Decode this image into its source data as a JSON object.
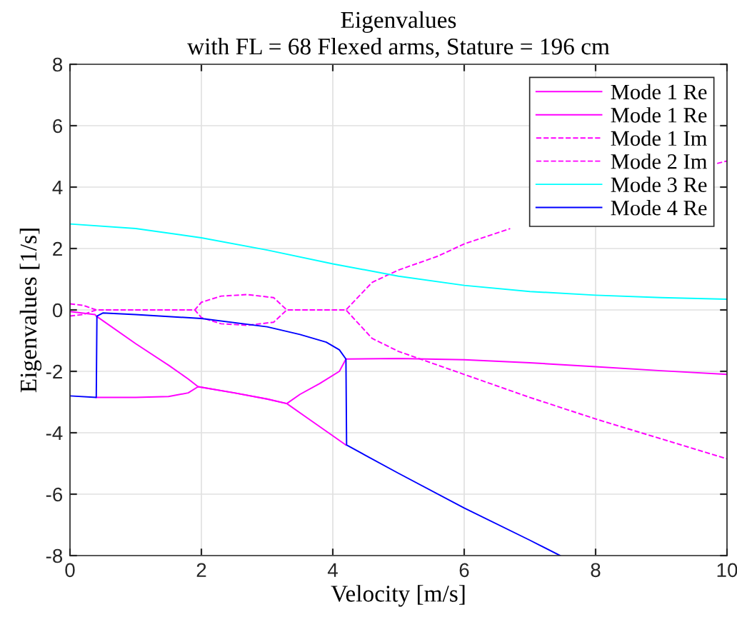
{
  "chart_data": {
    "type": "line",
    "title": "Eigenvalues",
    "subtitle": "with FL = 68 Flexed arms, Stature = 196 cm",
    "xlabel": "Velocity [m/s]",
    "ylabel": "Eigenvalues [1/s]",
    "xlim": [
      0,
      10
    ],
    "ylim": [
      -8,
      8
    ],
    "xticks": [
      0,
      2,
      4,
      6,
      8,
      10
    ],
    "yticks": [
      -8,
      -6,
      -4,
      -2,
      0,
      2,
      4,
      6,
      8
    ],
    "grid": true,
    "legend": "top right",
    "series": [
      {
        "name": "Mode 1 Re",
        "color": "#ff00ff",
        "line_style": "solid",
        "x": [
          0,
          0.38,
          0.4,
          1,
          1.5,
          1.8,
          1.95,
          2.5,
          3,
          3.3,
          3.5,
          3.8,
          4.1,
          4.2,
          5,
          6,
          7,
          8,
          9,
          10
        ],
        "values": [
          -0.05,
          -0.15,
          -0.2,
          -1.1,
          -1.8,
          -2.25,
          -2.5,
          -2.7,
          -2.9,
          -3.05,
          -2.75,
          -2.4,
          -2.0,
          -1.6,
          -1.58,
          -1.62,
          -1.72,
          -1.85,
          -1.98,
          -2.1
        ]
      },
      {
        "name": "Mode 1 Re",
        "color": "#ff00ff",
        "line_style": "solid",
        "x": [
          0.4,
          1,
          1.5,
          1.8,
          1.95,
          2.5,
          3,
          3.3,
          3.6,
          4,
          4.2
        ],
        "values": [
          -2.85,
          -2.85,
          -2.82,
          -2.7,
          -2.5,
          -2.7,
          -2.9,
          -3.05,
          -3.5,
          -4.1,
          -4.4
        ]
      },
      {
        "name": "Mode 1 Im",
        "color": "#ff00ff",
        "line_style": "dashed",
        "x": [
          0,
          0.2,
          0.4,
          1.9,
          2,
          2.3,
          2.7,
          3.1,
          3.3,
          4.2,
          4.6,
          5,
          5.6,
          6,
          6.7,
          8,
          9.85,
          10
        ],
        "values": [
          0.2,
          0.15,
          0,
          0,
          0.25,
          0.45,
          0.5,
          0.4,
          0,
          0,
          0.9,
          1.3,
          1.75,
          2.15,
          2.65,
          null,
          4.77,
          4.85
        ]
      },
      {
        "name": "Mode 2 Im",
        "color": "#ff00ff",
        "line_style": "dashed",
        "x": [
          0,
          0.2,
          0.4,
          1.9,
          2,
          2.3,
          2.7,
          3.1,
          3.3,
          4.2,
          4.6,
          5,
          6,
          7,
          8,
          9,
          10
        ],
        "values": [
          -0.2,
          -0.15,
          0,
          0,
          -0.25,
          -0.45,
          -0.5,
          -0.4,
          0,
          0,
          -0.93,
          -1.35,
          -2.1,
          -2.85,
          -3.55,
          -4.2,
          -4.85
        ]
      },
      {
        "name": "Mode 3 Re",
        "color": "#00ffff",
        "line_style": "solid",
        "x": [
          0,
          1,
          2,
          3,
          4,
          5,
          6,
          7,
          8,
          9,
          10
        ],
        "values": [
          2.8,
          2.65,
          2.35,
          1.95,
          1.5,
          1.1,
          0.8,
          0.6,
          0.48,
          0.4,
          0.35
        ]
      },
      {
        "name": "Mode 4 Re",
        "color": "#0000ff",
        "line_style": "solid",
        "x": [
          0,
          0.4,
          0.41,
          0.5,
          1,
          2,
          3,
          3.5,
          3.9,
          4.1,
          4.2,
          4.21,
          5,
          6,
          7,
          7.46
        ],
        "values": [
          -2.8,
          -2.85,
          -0.2,
          -0.1,
          -0.15,
          -0.28,
          -0.55,
          -0.8,
          -1.05,
          -1.3,
          -1.6,
          -4.4,
          -5.32,
          -6.45,
          -7.5,
          -8
        ]
      }
    ]
  }
}
